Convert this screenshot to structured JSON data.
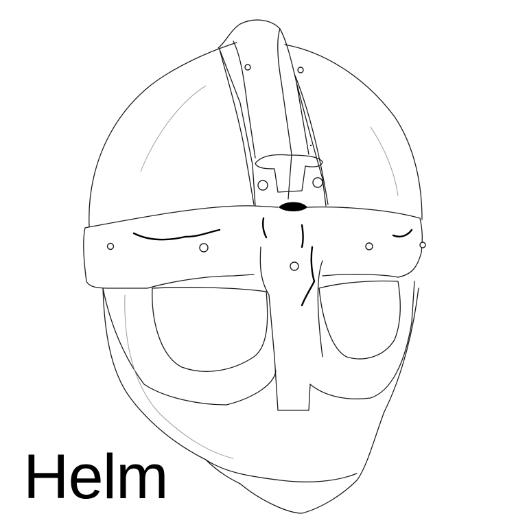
{
  "caption": "Helm",
  "colors": {
    "background": "#ffffff",
    "ink": "#000000"
  }
}
